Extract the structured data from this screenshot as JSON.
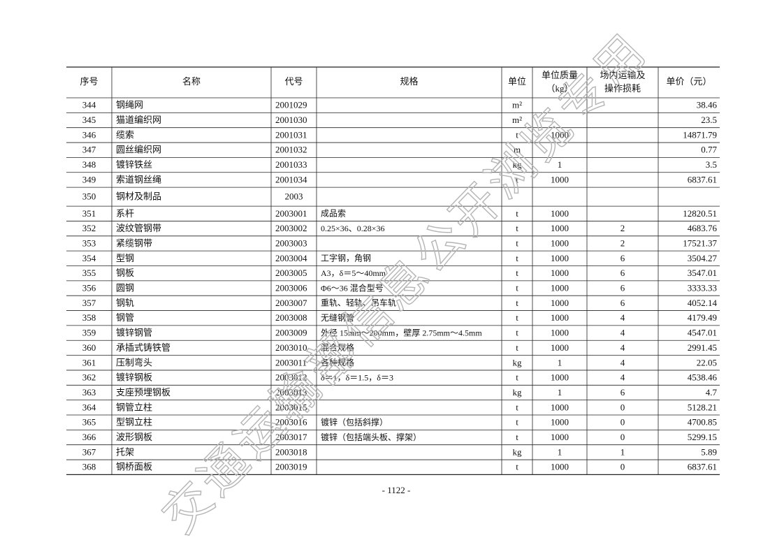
{
  "table": {
    "header": [
      "序号",
      "名称",
      "代号",
      "规格",
      "单位",
      [
        "单位质量",
        "（kg）"
      ],
      [
        "场内运输及",
        "操作损耗"
      ],
      "单价（元）"
    ],
    "rows": [
      [
        "344",
        "钢绳网",
        "2001029",
        null,
        "m²",
        null,
        null,
        "38.46"
      ],
      [
        "345",
        "猫道编织网",
        "2001030",
        null,
        "m²",
        null,
        null,
        "23.5"
      ],
      [
        "346",
        "缆索",
        "2001031",
        null,
        "t",
        "1000",
        null,
        "14871.79"
      ],
      [
        "347",
        "圆丝编织网",
        "2001032",
        null,
        "m",
        null,
        null,
        "0.77"
      ],
      [
        "348",
        "镀锌铁丝",
        "2001033",
        null,
        "kg",
        "1",
        null,
        "3.5"
      ],
      [
        "349",
        "索道钢丝绳",
        "2001034",
        null,
        "t",
        "1000",
        null,
        "6837.61"
      ],
      [
        "350",
        "钢材及制品",
        "2003",
        null,
        null,
        null,
        null,
        null
      ],
      [
        "351",
        "系杆",
        "2003001",
        "成品索",
        "t",
        "1000",
        null,
        "12820.51"
      ],
      [
        "352",
        "波纹管钢带",
        "2003002",
        "0.25×36、0.28×36",
        "t",
        "1000",
        "2",
        "4683.76"
      ],
      [
        "353",
        "紧缆钢带",
        "2003003",
        null,
        "t",
        "1000",
        "2",
        "17521.37"
      ],
      [
        "354",
        "型钢",
        "2003004",
        "工字钢，角钢",
        "t",
        "1000",
        "6",
        "3504.27"
      ],
      [
        "355",
        "钢板",
        "2003005",
        "A3，δ＝5～40mm",
        "t",
        "1000",
        "6",
        "3547.01"
      ],
      [
        "356",
        "圆钢",
        "2003006",
        "Φ6～36 混合型号",
        "t",
        "1000",
        "6",
        "3333.33"
      ],
      [
        "357",
        "钢轨",
        "2003007",
        "重轨、轻轨、吊车轨",
        "t",
        "1000",
        "6",
        "4052.14"
      ],
      [
        "358",
        "钢管",
        "2003008",
        "无缝钢管",
        "t",
        "1000",
        "4",
        "4179.49"
      ],
      [
        "359",
        "镀锌钢管",
        "2003009",
        "外径 15mm～200mm，壁厚 2.75mm～4.5mm",
        "t",
        "1000",
        "4",
        "4547.01"
      ],
      [
        "360",
        "承插式铸铁管",
        "2003010",
        "混合规格",
        "t",
        "1000",
        "4",
        "2991.45"
      ],
      [
        "361",
        "压制弯头",
        "2003011",
        "各种规格",
        "kg",
        "1",
        "4",
        "22.05"
      ],
      [
        "362",
        "镀锌钢板",
        "2003012",
        "δ＝1，δ＝1.5，δ＝3",
        "t",
        "1000",
        "4",
        "4538.46"
      ],
      [
        "363",
        "支座预埋钢板",
        "2003013",
        null,
        "kg",
        "1",
        "6",
        "4.7"
      ],
      [
        "364",
        "钢管立柱",
        "2003015",
        null,
        "t",
        "1000",
        "0",
        "5128.21"
      ],
      [
        "365",
        "型钢立柱",
        "2003016",
        "镀锌（包括斜撑）",
        "t",
        "1000",
        "0",
        "4700.85"
      ],
      [
        "366",
        "波形钢板",
        "2003017",
        "镀锌（包括端头板、撑架）",
        "t",
        "1000",
        "0",
        "5299.15"
      ],
      [
        "367",
        "托架",
        "2003018",
        null,
        "kg",
        "1",
        "1",
        "5.89"
      ],
      [
        "368",
        "钢桥面板",
        "2003019",
        null,
        "t",
        "1000",
        "0",
        "6837.61"
      ]
    ]
  },
  "page_number": "- 1122 -",
  "watermark": "交通运输部信息公开浏览专用"
}
